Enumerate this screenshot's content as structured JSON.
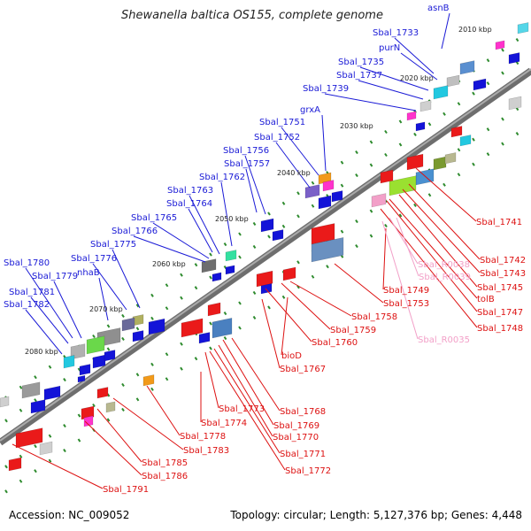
{
  "title": "Shewanella baltica OS155, complete genome",
  "accession": "Accession: NC_009052",
  "summary": "Topology: circular; Length: 5,127,376 bp; Genes: 4,448",
  "colors": {
    "forward_label": "#1a1ad6",
    "reverse_label": "#dd1111",
    "rna_label": "#f2a0c8",
    "backbone": "#6e6e6e",
    "tick": "#2e8b2e"
  },
  "kbp_marks": [
    "2010 kbp",
    "2020 kbp",
    "2030 kbp",
    "2040 kbp",
    "2050 kbp",
    "2060 kbp",
    "2070 kbp",
    "2080 kbp"
  ],
  "forward_labels": [
    "asnB",
    "Sbal_1733",
    "purN",
    "Sbal_1735",
    "Sbal_1737",
    "Sbal_1739",
    "grxA",
    "Sbal_1751",
    "Sbal_1752",
    "Sbal_1756",
    "Sbal_1757",
    "Sbal_1762",
    "Sbal_1763",
    "Sbal_1764",
    "Sbal_1765",
    "Sbal_1766",
    "Sbal_1775",
    "Sbal_1776",
    "Sbal_1780",
    "Sbal_1779",
    "nhaB",
    "Sbal_1781",
    "Sbal_1782"
  ],
  "reverse_labels": [
    "Sbal_1741",
    "Sbal_1742",
    "Sbal_1743",
    "Sbal_1745",
    "tolB",
    "Sbal_1747",
    "Sbal_1748",
    "Sbal_1749",
    "Sbal_1753",
    "Sbal_1758",
    "Sbal_1759",
    "Sbal_1760",
    "bioD",
    "Sbal_1767",
    "Sbal_1768",
    "Sbal_1769",
    "Sbal_1770",
    "Sbal_1771",
    "Sbal_1772",
    "Sbal_1773",
    "Sbal_1774",
    "Sbal_1778",
    "Sbal_1783",
    "Sbal_1785",
    "Sbal_1786",
    "Sbal_1791"
  ],
  "rna_labels": [
    "Sbal_R0038",
    "Sbal_R0039",
    "Sbal_R0035"
  ]
}
